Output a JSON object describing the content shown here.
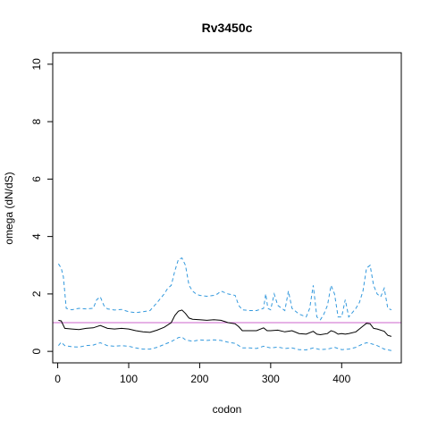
{
  "chart_data": {
    "type": "line",
    "title": "Rv3450c",
    "xlabel": "codon",
    "ylabel": "omega (dN/dS)",
    "xlim": [
      -7,
      484
    ],
    "ylim": [
      -0.4,
      10.4
    ],
    "xticks": [
      0,
      100,
      200,
      300,
      400
    ],
    "yticks": [
      0,
      2,
      4,
      6,
      8,
      10
    ],
    "reference_line": {
      "y": 1,
      "color": "#cc66cc"
    },
    "series": [
      {
        "style": "solid",
        "color": "#000000",
        "points": [
          [
            1,
            1.08
          ],
          [
            5,
            1.06
          ],
          [
            10,
            0.8
          ],
          [
            20,
            0.78
          ],
          [
            30,
            0.76
          ],
          [
            40,
            0.8
          ],
          [
            50,
            0.82
          ],
          [
            60,
            0.9
          ],
          [
            70,
            0.8
          ],
          [
            80,
            0.78
          ],
          [
            90,
            0.8
          ],
          [
            100,
            0.78
          ],
          [
            110,
            0.72
          ],
          [
            120,
            0.68
          ],
          [
            130,
            0.66
          ],
          [
            140,
            0.74
          ],
          [
            150,
            0.84
          ],
          [
            160,
            1.0
          ],
          [
            165,
            1.25
          ],
          [
            170,
            1.4
          ],
          [
            175,
            1.44
          ],
          [
            180,
            1.32
          ],
          [
            185,
            1.16
          ],
          [
            190,
            1.12
          ],
          [
            200,
            1.1
          ],
          [
            210,
            1.08
          ],
          [
            220,
            1.1
          ],
          [
            230,
            1.08
          ],
          [
            240,
            1.0
          ],
          [
            250,
            0.96
          ],
          [
            255,
            0.86
          ],
          [
            260,
            0.72
          ],
          [
            270,
            0.72
          ],
          [
            280,
            0.72
          ],
          [
            290,
            0.82
          ],
          [
            295,
            0.72
          ],
          [
            300,
            0.72
          ],
          [
            310,
            0.74
          ],
          [
            320,
            0.68
          ],
          [
            330,
            0.72
          ],
          [
            340,
            0.62
          ],
          [
            350,
            0.6
          ],
          [
            360,
            0.7
          ],
          [
            365,
            0.6
          ],
          [
            370,
            0.58
          ],
          [
            380,
            0.62
          ],
          [
            385,
            0.72
          ],
          [
            390,
            0.68
          ],
          [
            395,
            0.6
          ],
          [
            400,
            0.62
          ],
          [
            405,
            0.6
          ],
          [
            410,
            0.62
          ],
          [
            420,
            0.68
          ],
          [
            430,
            0.88
          ],
          [
            435,
            0.98
          ],
          [
            440,
            0.96
          ],
          [
            445,
            0.8
          ],
          [
            450,
            0.78
          ],
          [
            460,
            0.7
          ],
          [
            465,
            0.56
          ],
          [
            470,
            0.52
          ]
        ]
      },
      {
        "style": "dashed",
        "color": "#3399dd",
        "points": [
          [
            1,
            3.05
          ],
          [
            5,
            2.9
          ],
          [
            8,
            2.6
          ],
          [
            12,
            1.5
          ],
          [
            20,
            1.45
          ],
          [
            30,
            1.5
          ],
          [
            40,
            1.48
          ],
          [
            50,
            1.5
          ],
          [
            55,
            1.8
          ],
          [
            60,
            1.9
          ],
          [
            65,
            1.6
          ],
          [
            70,
            1.48
          ],
          [
            80,
            1.44
          ],
          [
            90,
            1.46
          ],
          [
            100,
            1.38
          ],
          [
            110,
            1.35
          ],
          [
            120,
            1.38
          ],
          [
            130,
            1.42
          ],
          [
            140,
            1.7
          ],
          [
            150,
            2.0
          ],
          [
            155,
            2.2
          ],
          [
            160,
            2.3
          ],
          [
            165,
            2.8
          ],
          [
            170,
            3.2
          ],
          [
            175,
            3.25
          ],
          [
            180,
            3.0
          ],
          [
            185,
            2.3
          ],
          [
            190,
            2.1
          ],
          [
            195,
            2.0
          ],
          [
            200,
            1.95
          ],
          [
            210,
            1.92
          ],
          [
            220,
            1.95
          ],
          [
            225,
            2.0
          ],
          [
            230,
            2.1
          ],
          [
            240,
            2.0
          ],
          [
            250,
            1.95
          ],
          [
            255,
            1.6
          ],
          [
            260,
            1.45
          ],
          [
            270,
            1.42
          ],
          [
            280,
            1.42
          ],
          [
            290,
            1.5
          ],
          [
            293,
            2.0
          ],
          [
            296,
            1.5
          ],
          [
            300,
            1.45
          ],
          [
            305,
            2.0
          ],
          [
            310,
            1.6
          ],
          [
            320,
            1.42
          ],
          [
            325,
            2.1
          ],
          [
            330,
            1.5
          ],
          [
            340,
            1.3
          ],
          [
            350,
            1.2
          ],
          [
            355,
            1.5
          ],
          [
            360,
            2.3
          ],
          [
            365,
            1.2
          ],
          [
            370,
            1.1
          ],
          [
            375,
            1.3
          ],
          [
            380,
            1.6
          ],
          [
            385,
            2.3
          ],
          [
            390,
            2.0
          ],
          [
            395,
            1.2
          ],
          [
            400,
            1.2
          ],
          [
            405,
            1.8
          ],
          [
            410,
            1.2
          ],
          [
            420,
            1.5
          ],
          [
            425,
            1.7
          ],
          [
            430,
            2.1
          ],
          [
            435,
            2.9
          ],
          [
            440,
            3.0
          ],
          [
            445,
            2.3
          ],
          [
            450,
            2.0
          ],
          [
            455,
            1.9
          ],
          [
            460,
            2.2
          ],
          [
            465,
            1.5
          ],
          [
            470,
            1.45
          ]
        ]
      },
      {
        "style": "dashed",
        "color": "#3399dd",
        "points": [
          [
            1,
            0.2
          ],
          [
            5,
            0.32
          ],
          [
            10,
            0.2
          ],
          [
            20,
            0.16
          ],
          [
            30,
            0.15
          ],
          [
            40,
            0.2
          ],
          [
            50,
            0.22
          ],
          [
            60,
            0.3
          ],
          [
            70,
            0.2
          ],
          [
            80,
            0.18
          ],
          [
            90,
            0.2
          ],
          [
            100,
            0.18
          ],
          [
            110,
            0.12
          ],
          [
            120,
            0.08
          ],
          [
            130,
            0.08
          ],
          [
            140,
            0.14
          ],
          [
            150,
            0.24
          ],
          [
            160,
            0.34
          ],
          [
            170,
            0.48
          ],
          [
            175,
            0.5
          ],
          [
            180,
            0.4
          ],
          [
            190,
            0.35
          ],
          [
            200,
            0.4
          ],
          [
            210,
            0.38
          ],
          [
            220,
            0.4
          ],
          [
            230,
            0.38
          ],
          [
            240,
            0.32
          ],
          [
            250,
            0.28
          ],
          [
            255,
            0.2
          ],
          [
            260,
            0.12
          ],
          [
            270,
            0.12
          ],
          [
            280,
            0.1
          ],
          [
            290,
            0.18
          ],
          [
            300,
            0.12
          ],
          [
            310,
            0.15
          ],
          [
            320,
            0.1
          ],
          [
            330,
            0.12
          ],
          [
            340,
            0.06
          ],
          [
            350,
            0.05
          ],
          [
            360,
            0.12
          ],
          [
            370,
            0.06
          ],
          [
            380,
            0.08
          ],
          [
            390,
            0.14
          ],
          [
            400,
            0.06
          ],
          [
            410,
            0.08
          ],
          [
            420,
            0.14
          ],
          [
            430,
            0.26
          ],
          [
            435,
            0.3
          ],
          [
            440,
            0.28
          ],
          [
            450,
            0.2
          ],
          [
            460,
            0.08
          ],
          [
            470,
            0.03
          ]
        ]
      }
    ]
  }
}
